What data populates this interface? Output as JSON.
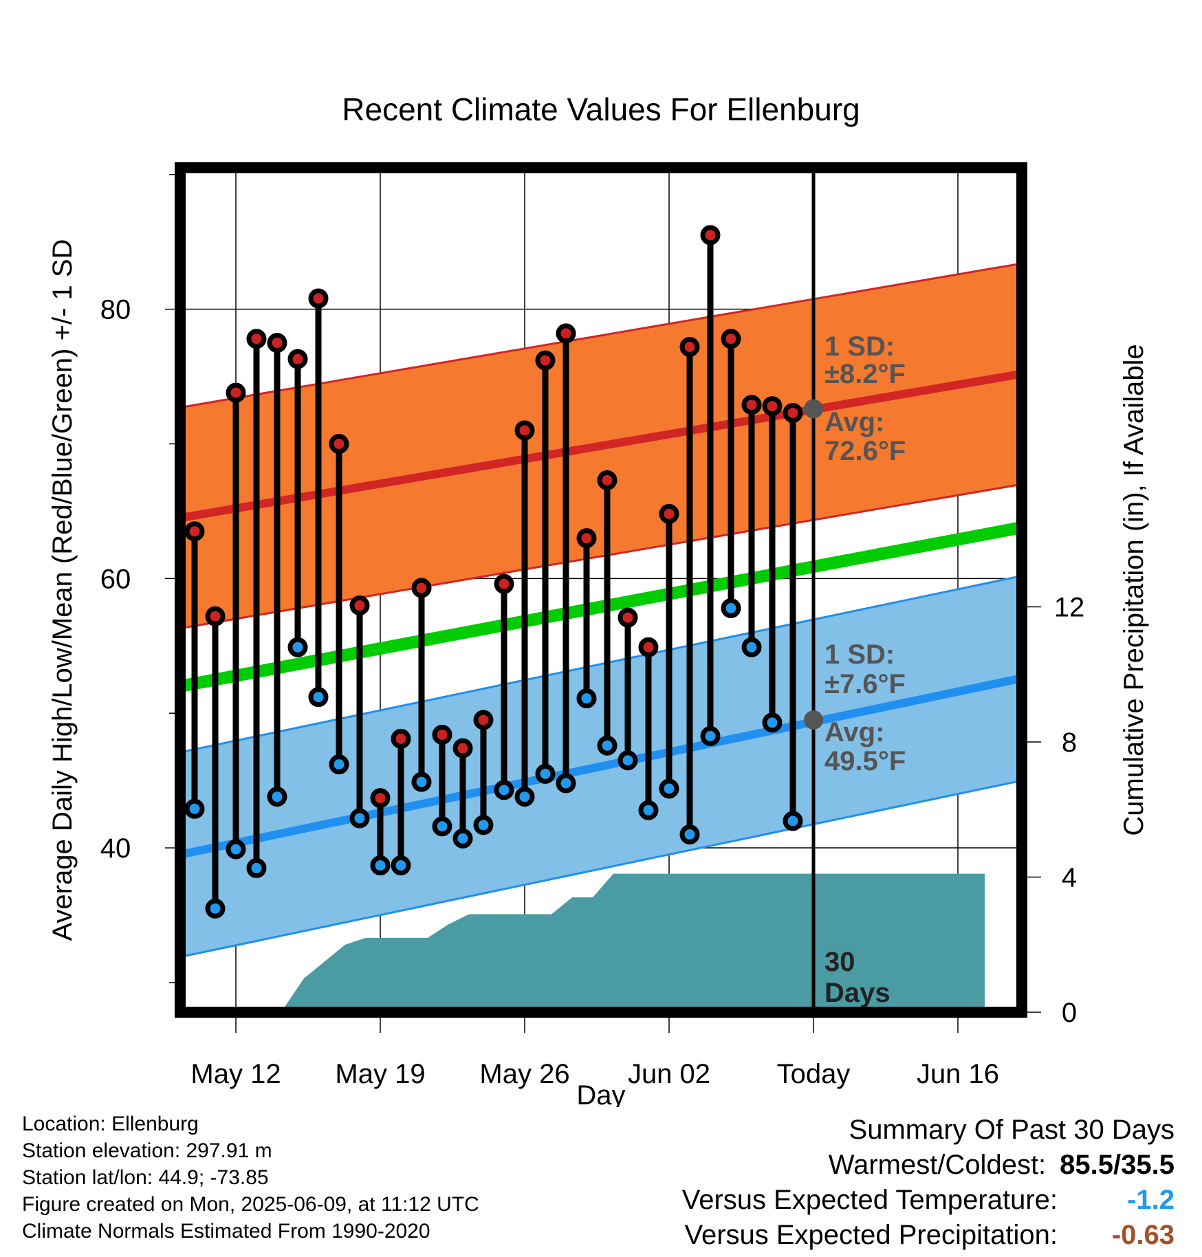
{
  "chart_data": {
    "type": "line",
    "title": "Recent Climate Values For Ellenburg",
    "xlabel": "Day",
    "ylabel_left": "Average Daily High/Low/Mean (Red/Blue/Green) +/- 1 SD",
    "ylabel_right": "Cumulative Precipitation (in), If Available",
    "x_ticks": [
      "May 12",
      "May 19",
      "May 26",
      "Jun 02",
      "Today",
      "Jun 16"
    ],
    "x_tick_days": [
      0,
      7,
      14,
      21,
      28,
      35
    ],
    "x_range_days": [
      -2.7,
      38.1
    ],
    "left_y_ticks": [
      40,
      60,
      80
    ],
    "left_y_range": [
      27.8,
      90.5
    ],
    "right_y_ticks": [
      0,
      4,
      8,
      12
    ],
    "right_y_range": [
      0,
      25
    ],
    "today_day": 28,
    "normals": {
      "x_days": [
        -2.7,
        38.1
      ],
      "high_avg": [
        64.5,
        75.2
      ],
      "high_sd": 8.2,
      "low_avg": [
        39.5,
        52.6
      ],
      "low_sd": 7.6,
      "mean_avg": [
        52.0,
        63.8
      ]
    },
    "series": [
      {
        "name": "High",
        "color": "#cc2222",
        "values": [
          63.5,
          57.2,
          73.8,
          77.8,
          77.5,
          76.3,
          80.8,
          70.0,
          58.0,
          43.7,
          48.1,
          59.3,
          48.4,
          47.4,
          49.5,
          59.6,
          71.0,
          76.2,
          78.2,
          63.0,
          67.3,
          57.1,
          54.9,
          64.8,
          77.2,
          85.5,
          77.8,
          72.9,
          72.8,
          72.3
        ]
      },
      {
        "name": "Low",
        "color": "#2299ee",
        "values": [
          42.9,
          35.5,
          39.9,
          38.5,
          43.8,
          54.9,
          51.2,
          46.2,
          42.2,
          38.7,
          38.7,
          44.9,
          41.6,
          40.7,
          41.7,
          44.3,
          43.8,
          45.5,
          44.8,
          51.1,
          47.6,
          46.5,
          42.8,
          44.4,
          41.0,
          48.3,
          57.8,
          54.9,
          49.3,
          42.0
        ]
      }
    ],
    "data_start_day": -2,
    "precip_cumulative": [
      0,
      0,
      0,
      0,
      0,
      0.1,
      1.0,
      1.5,
      2.0,
      2.2,
      2.2,
      2.2,
      2.2,
      2.6,
      2.9,
      2.9,
      2.9,
      2.9,
      2.9,
      3.4,
      3.4,
      4.1,
      4.1,
      4.1,
      4.1,
      4.1,
      4.1,
      4.1,
      4.1,
      4.1,
      4.1,
      4.1,
      4.1,
      4.1,
      4.1,
      4.1,
      4.1,
      4.1,
      4.1,
      4.1
    ],
    "precip_start_day": -2.7,
    "annotations": {
      "high_sd_label": "1 SD:",
      "high_sd_value": "±8.2°F",
      "high_avg_label": "Avg:",
      "high_avg_value": "72.6°F",
      "high_avg_marker": 72.6,
      "low_sd_label": "1 SD:",
      "low_sd_value": "±7.6°F",
      "low_avg_label": "Avg:",
      "low_avg_value": "49.5°F",
      "low_avg_marker": 49.5,
      "days_number": "30",
      "days_word": "Days"
    },
    "colors": {
      "high_band": "#f57a30",
      "high_line": "#d22525",
      "low_band": "#82c0e8",
      "low_line": "#1f8ff0",
      "mean_line": "#00cc00",
      "precip": "#4a9ba4",
      "avg_marker": "#555555"
    },
    "grid": true
  },
  "footer": {
    "location": "Location: Ellenburg",
    "elevation": "Station elevation: 297.91 m",
    "latlon": "Station lat/lon: 44.9; -73.85",
    "created": "Figure created on Mon, 2025-06-09, at 11:12 UTC",
    "normals": "Climate Normals Estimated From 1990-2020"
  },
  "summary": {
    "title": "Summary Of Past 30 Days",
    "warmest_label": "Warmest/Coldest:",
    "warmest_value": "85.5/35.5",
    "temp_label": "Versus Expected Temperature:",
    "temp_value": "-1.2",
    "temp_color": "#2299ee",
    "precip_label": "Versus Expected Precipitation:",
    "precip_value": "-0.63",
    "precip_color": "#a0522d"
  }
}
